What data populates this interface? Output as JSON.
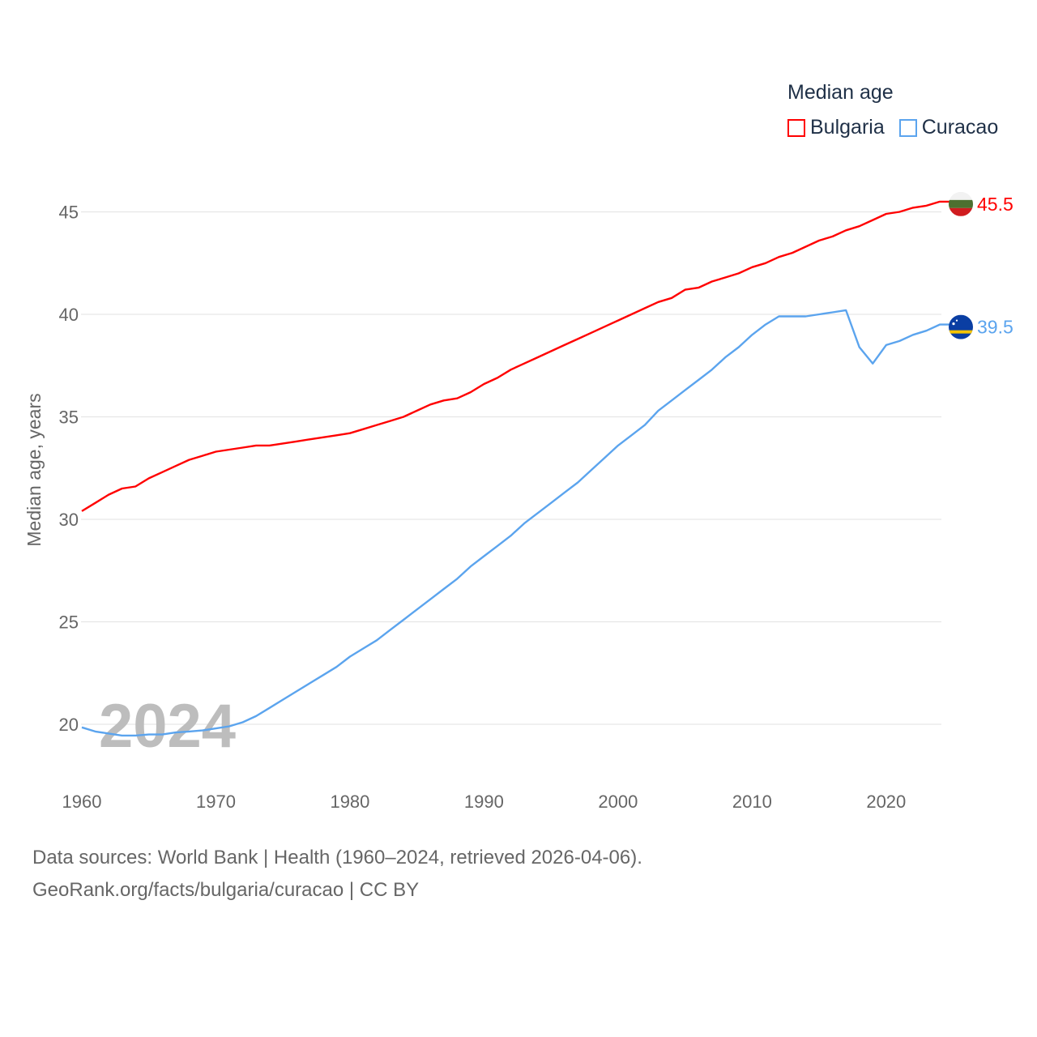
{
  "chart_data": {
    "type": "line",
    "title": "Median age",
    "xlabel": "",
    "ylabel": "Median age, years",
    "xlim": [
      1960,
      2024
    ],
    "ylim": [
      18,
      47
    ],
    "x_ticks": [
      "1960",
      "1970",
      "1980",
      "1990",
      "2000",
      "2010",
      "2020"
    ],
    "y_ticks": [
      "20",
      "25",
      "30",
      "35",
      "40",
      "45"
    ],
    "grid": true,
    "legend_placement": "top-right",
    "year_label": "2024",
    "x": [
      1960,
      1961,
      1962,
      1963,
      1964,
      1965,
      1966,
      1967,
      1968,
      1969,
      1970,
      1971,
      1972,
      1973,
      1974,
      1975,
      1976,
      1977,
      1978,
      1979,
      1980,
      1981,
      1982,
      1983,
      1984,
      1985,
      1986,
      1987,
      1988,
      1989,
      1990,
      1991,
      1992,
      1993,
      1994,
      1995,
      1996,
      1997,
      1998,
      1999,
      2000,
      2001,
      2002,
      2003,
      2004,
      2005,
      2006,
      2007,
      2008,
      2009,
      2010,
      2011,
      2012,
      2013,
      2014,
      2015,
      2016,
      2017,
      2018,
      2019,
      2020,
      2021,
      2022,
      2023,
      2024
    ],
    "series": [
      {
        "name": "Bulgaria",
        "color": "#ff0000",
        "end_label": "45.5",
        "values": [
          30.4,
          30.8,
          31.2,
          31.5,
          31.6,
          32.0,
          32.3,
          32.6,
          32.9,
          33.1,
          33.3,
          33.4,
          33.5,
          33.6,
          33.6,
          33.7,
          33.8,
          33.9,
          34.0,
          34.1,
          34.2,
          34.4,
          34.6,
          34.8,
          35.0,
          35.3,
          35.6,
          35.8,
          35.9,
          36.2,
          36.6,
          36.9,
          37.3,
          37.6,
          37.9,
          38.2,
          38.5,
          38.8,
          39.1,
          39.4,
          39.7,
          40.0,
          40.3,
          40.6,
          40.8,
          41.2,
          41.3,
          41.6,
          41.8,
          42.0,
          42.3,
          42.5,
          42.8,
          43.0,
          43.3,
          43.6,
          43.8,
          44.1,
          44.3,
          44.6,
          44.9,
          45.0,
          45.2,
          45.3,
          45.5
        ]
      },
      {
        "name": "Curacao",
        "color": "#5ba4ee",
        "end_label": "39.5",
        "values": [
          19.85,
          19.65,
          19.55,
          19.45,
          19.45,
          19.5,
          19.5,
          19.6,
          19.65,
          19.7,
          19.8,
          19.9,
          20.1,
          20.4,
          20.8,
          21.2,
          21.6,
          22.0,
          22.4,
          22.8,
          23.3,
          23.7,
          24.1,
          24.6,
          25.1,
          25.6,
          26.1,
          26.6,
          27.1,
          27.7,
          28.2,
          28.7,
          29.2,
          29.8,
          30.3,
          30.8,
          31.3,
          31.8,
          32.4,
          33.0,
          33.6,
          34.1,
          34.6,
          35.3,
          35.8,
          36.3,
          36.8,
          37.3,
          37.9,
          38.4,
          39.0,
          39.5,
          39.9,
          39.9,
          39.9,
          40.0,
          40.1,
          40.2,
          38.4,
          37.6,
          38.5,
          38.7,
          39.0,
          39.2,
          39.5
        ]
      }
    ]
  },
  "footer": {
    "line1": "Data sources: World Bank | Health (1960–2024, retrieved 2026-04-06).",
    "line2": "GeoRank.org/facts/bulgaria/curacao | CC BY"
  }
}
